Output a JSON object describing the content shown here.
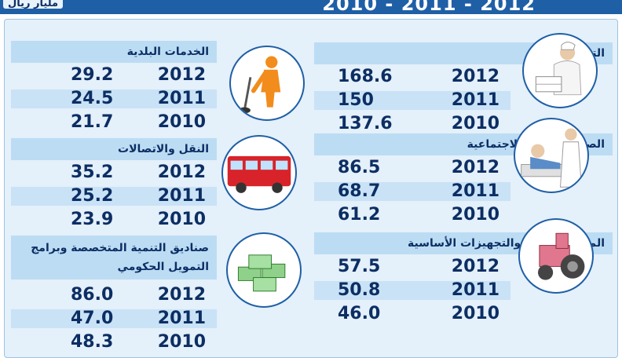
{
  "header": {
    "title": "2012 - 2011 - 2010",
    "unit": "مليار ريال"
  },
  "chart_data": {
    "type": "table",
    "years": [
      "2012",
      "2011",
      "2010"
    ],
    "categories": [
      {
        "name": "التعليم",
        "values": [
          168.6,
          150,
          137.6
        ],
        "display": [
          "168.6",
          "150",
          "137.6"
        ]
      },
      {
        "name": "الصحة والتنمية الاجتماعية",
        "values": [
          86.5,
          68.7,
          61.2
        ],
        "display": [
          "86.5",
          "68.7",
          "61.2"
        ]
      },
      {
        "name": "المياه والزراعة والتجهيزات الأساسية",
        "values": [
          57.5,
          50.8,
          46.0
        ],
        "display": [
          "57.5",
          "50.8",
          "46.0"
        ]
      },
      {
        "name": "الخدمات البلدية",
        "values": [
          29.2,
          24.5,
          21.7
        ],
        "display": [
          "29.2",
          "24.5",
          "21.7"
        ]
      },
      {
        "name": "النقل والاتصالات",
        "values": [
          35.2,
          25.2,
          23.9
        ],
        "display": [
          "35.2",
          "25.2",
          "23.9"
        ]
      },
      {
        "name": "صناديق التنمية المتخصصة وبرامج التمويل الحكومي",
        "values": [
          86.0,
          47.0,
          48.3
        ],
        "display": [
          "86.0",
          "47.0",
          "48.3"
        ]
      }
    ]
  },
  "icons": [
    "teacher-reading-icon",
    "doctor-patient-icon",
    "tractor-icon",
    "street-sweeper-icon",
    "bus-icon",
    "money-stacks-icon"
  ],
  "colors": {
    "banner": "#1f5fa6",
    "bar": "#bcdcf4",
    "text": "#0c2e63"
  }
}
